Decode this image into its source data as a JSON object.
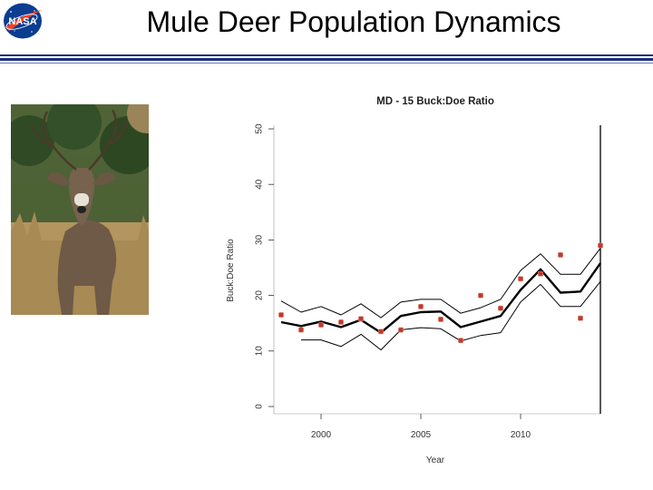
{
  "slide": {
    "title": "Mule Deer Population Dynamics",
    "logo_text": "NASA",
    "rule_color": "#1e2f7a"
  },
  "photo": {
    "subject": "mule deer buck"
  },
  "chart_data": {
    "type": "line",
    "title": "MD - 15 Buck:Doe Ratio",
    "xlabel": "Year",
    "ylabel": "Buck:Doe Ratio",
    "xlim": [
      1998,
      2014
    ],
    "ylim": [
      0,
      50
    ],
    "xticks": [
      2000,
      2005,
      2010
    ],
    "xtick_labels": [
      "2000",
      "2005",
      "2010"
    ],
    "yticks": [
      0,
      10,
      20,
      30,
      40,
      50
    ],
    "ytick_labels": [
      "0",
      "10",
      "20",
      "30",
      "40",
      "50"
    ],
    "grid": false,
    "series": [
      {
        "role": "observed",
        "style": "points",
        "color": "#c0392b",
        "x": [
          1998,
          1999,
          2000,
          2001,
          2002,
          2003,
          2004,
          2005,
          2006,
          2007,
          2008,
          2009,
          2010,
          2011,
          2012,
          2013,
          2014
        ],
        "y": [
          16.5,
          13.8,
          14.7,
          15.2,
          15.8,
          13.5,
          13.8,
          18.0,
          15.7,
          11.9,
          20.0,
          17.7,
          23.0,
          23.9,
          27.3,
          15.9,
          29.0
        ]
      },
      {
        "role": "estimate",
        "style": "line-thick",
        "color": "#000000",
        "x": [
          1998,
          1999,
          2000,
          2001,
          2002,
          2003,
          2004,
          2005,
          2006,
          2007,
          2008,
          2009,
          2010,
          2011,
          2012,
          2013,
          2014
        ],
        "y": [
          15.2,
          14.5,
          15.3,
          14.3,
          15.6,
          13.3,
          16.3,
          17.0,
          17.1,
          14.3,
          15.3,
          16.3,
          21.0,
          24.7,
          20.5,
          20.7,
          25.8
        ]
      },
      {
        "role": "upper bound",
        "style": "line-thin",
        "color": "#000000",
        "x": [
          1998,
          1999,
          2000,
          2001,
          2002,
          2003,
          2004,
          2005,
          2006,
          2007,
          2008,
          2009,
          2010,
          2011,
          2012,
          2013,
          2014
        ],
        "y": [
          19.0,
          17.0,
          18.0,
          16.5,
          18.5,
          16.0,
          18.8,
          19.3,
          19.3,
          16.8,
          17.8,
          19.3,
          24.5,
          27.5,
          23.8,
          23.8,
          28.5
        ]
      },
      {
        "role": "lower bound",
        "style": "line-thin",
        "color": "#000000",
        "x": [
          1999,
          2000,
          2001,
          2002,
          2003,
          2004,
          2005,
          2006,
          2007,
          2008,
          2009,
          2010,
          2011,
          2012,
          2013,
          2014
        ],
        "y": [
          12.0,
          12.0,
          10.8,
          13.0,
          10.2,
          13.8,
          14.2,
          14.0,
          11.8,
          12.8,
          13.3,
          18.8,
          22.0,
          18.0,
          18.0,
          22.5
        ]
      }
    ]
  }
}
